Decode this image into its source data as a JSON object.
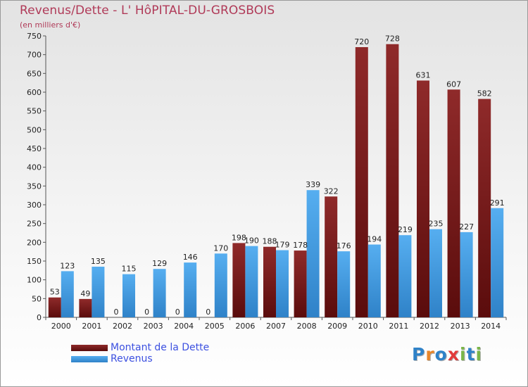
{
  "title": "Revenus/Dette - L' HôPITAL-DU-GROSBOIS",
  "subtitle": "(en milliers d'€)",
  "legend": {
    "items": [
      {
        "label": "Montant de la Dette",
        "color": "#6b1212"
      },
      {
        "label": "Revenus",
        "color": "#3f97dc"
      }
    ]
  },
  "logo": {
    "text": "Proxiti",
    "letters": [
      {
        "ch": "P",
        "color": "#2f82c8"
      },
      {
        "ch": "r",
        "color": "#e8862a"
      },
      {
        "ch": "o",
        "color": "#2f82c8"
      },
      {
        "ch": "x",
        "color": "#e23b3b"
      },
      {
        "ch": "i",
        "color": "#7ab648"
      },
      {
        "ch": "t",
        "color": "#2f82c8"
      },
      {
        "ch": "i",
        "color": "#7ab648"
      }
    ]
  },
  "chart_data": {
    "type": "bar",
    "title": "Revenus/Dette - L' HôPITAL-DU-GROSBOIS",
    "ylabel": "(en milliers d'€)",
    "ylim": [
      0,
      750
    ],
    "yticks": [
      0,
      50,
      100,
      150,
      200,
      250,
      300,
      350,
      400,
      450,
      500,
      550,
      600,
      650,
      700,
      750
    ],
    "grid": false,
    "legend_position": "bottom-left",
    "categories": [
      "2000",
      "2001",
      "2002",
      "2003",
      "2004",
      "2005",
      "2006",
      "2007",
      "2008",
      "2009",
      "2010",
      "2011",
      "2012",
      "2013",
      "2014"
    ],
    "series": [
      {
        "name": "Montant de la Dette",
        "color": "#6b1212",
        "values": [
          53,
          49,
          0,
          0,
          0,
          0,
          198,
          188,
          178,
          322,
          720,
          728,
          631,
          607,
          582
        ]
      },
      {
        "name": "Revenus",
        "color": "#3f97dc",
        "values": [
          123,
          135,
          115,
          129,
          146,
          170,
          190,
          179,
          339,
          176,
          194,
          219,
          235,
          227,
          291
        ]
      }
    ]
  }
}
